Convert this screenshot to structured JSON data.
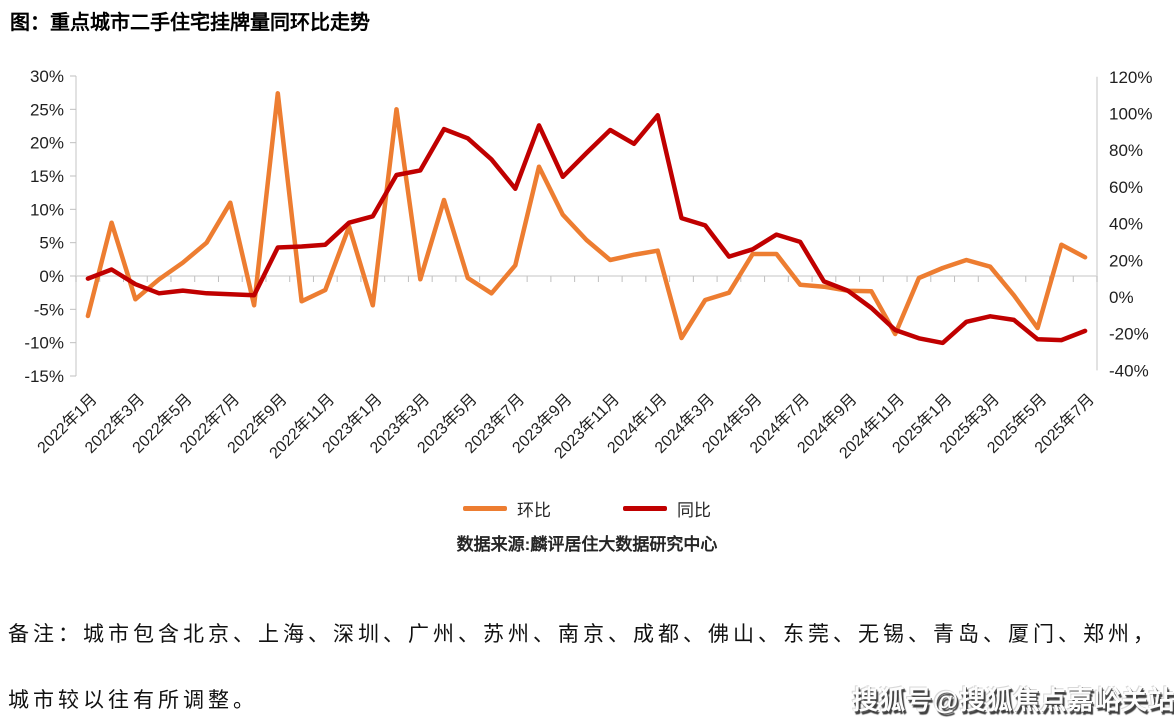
{
  "title": "图：重点城市二手住宅挂牌量同环比走势",
  "legend": [
    {
      "label": "环比",
      "color": "#ED7D31"
    },
    {
      "label": "同比",
      "color": "#C00000"
    }
  ],
  "source": "数据来源:麟评居住大数据研究中心",
  "notes": [
    "备注：城市包含北京、上海、深圳、广州、苏州、南京、成都、佛山、东莞、无锡、青岛、厦门、郑州，",
    "城市较以往有所调整。"
  ],
  "watermark": "搜狐号@搜狐焦点嘉峪关站",
  "chart_data": {
    "type": "line",
    "title": "图：重点城市二手住宅挂牌量同环比走势",
    "x": [
      "2022年1月",
      "2022年2月",
      "2022年3月",
      "2022年4月",
      "2022年5月",
      "2022年6月",
      "2022年7月",
      "2022年8月",
      "2022年9月",
      "2022年10月",
      "2022年11月",
      "2022年12月",
      "2023年1月",
      "2023年2月",
      "2023年3月",
      "2023年4月",
      "2023年5月",
      "2023年6月",
      "2023年7月",
      "2023年8月",
      "2023年9月",
      "2023年10月",
      "2023年11月",
      "2023年12月",
      "2024年1月",
      "2024年2月",
      "2024年3月",
      "2024年4月",
      "2024年5月",
      "2024年6月",
      "2024年7月",
      "2024年8月",
      "2024年9月",
      "2024年10月",
      "2024年11月",
      "2024年12月",
      "2025年1月",
      "2025年2月",
      "2025年3月",
      "2025年4月",
      "2025年5月",
      "2025年6月",
      "2025年7月"
    ],
    "x_label_every": 2,
    "series": [
      {
        "name": "环比",
        "axis": "left",
        "color": "#ED7D31",
        "values": [
          -6,
          8,
          -3.5,
          -0.5,
          2,
          5,
          11,
          -4.4,
          27.4,
          -3.8,
          -2.1,
          7.4,
          -4.4,
          25,
          -0.5,
          11.4,
          -0.3,
          -2.6,
          1.6,
          16.4,
          9.2,
          5.4,
          2.4,
          3.2,
          3.8,
          -9.3,
          -3.6,
          -2.5,
          3.3,
          3.3,
          -1.3,
          -1.6,
          -2.2,
          -2.3,
          -8.7,
          -0.3,
          1.2,
          2.4,
          1.4,
          -2.9,
          -7.8,
          4.7,
          2.8
        ]
      },
      {
        "name": "同比",
        "axis": "right",
        "color": "#C00000",
        "values": [
          10,
          15,
          7,
          2,
          3.5,
          2,
          1.5,
          1,
          27,
          27.5,
          28.5,
          40.5,
          44,
          66.5,
          69,
          91.5,
          86.5,
          75,
          59,
          93.5,
          65.5,
          78.5,
          91,
          83.5,
          99,
          43,
          39,
          22,
          26,
          34,
          30,
          8.5,
          3.5,
          -6,
          -18,
          -22.5,
          -25,
          -13.5,
          -10.5,
          -12.5,
          -23,
          -23.5,
          -18.5
        ]
      }
    ],
    "left_axis": {
      "min": -15,
      "max": 30,
      "step": 5,
      "format": "percent",
      "ticks": [
        "30%",
        "25%",
        "20%",
        "15%",
        "10%",
        "5%",
        "0%",
        "-5%",
        "-10%",
        "-15%"
      ]
    },
    "right_axis": {
      "min": -40,
      "max": 120,
      "step": 20,
      "format": "percent",
      "ticks": [
        "120%",
        "100%",
        "80%",
        "60%",
        "40%",
        "20%",
        "0%",
        "-20%",
        "-40%"
      ]
    },
    "grid": "zero-line-only",
    "legend_position": "bottom"
  }
}
